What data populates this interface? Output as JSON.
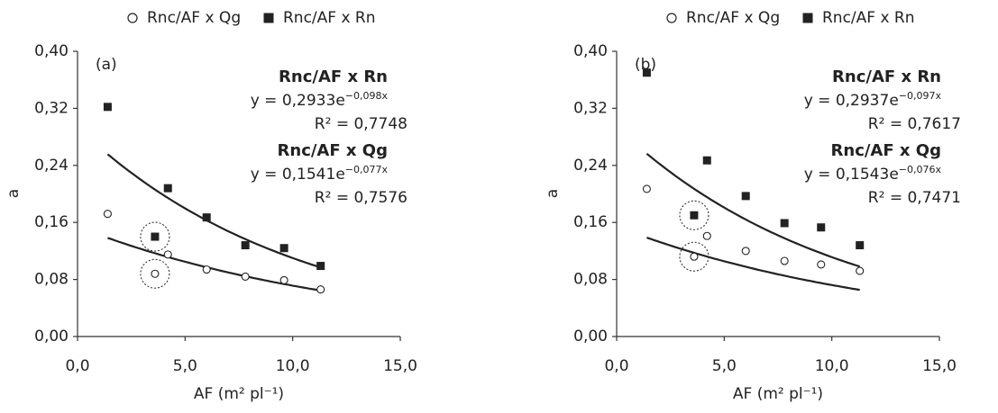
{
  "chart_data": [
    {
      "type": "scatter",
      "panel_label": "(a)",
      "x_label": "AF (m² pl⁻¹)",
      "y_label": "a",
      "xlim": [
        0,
        15
      ],
      "ylim": [
        0,
        0.4
      ],
      "xticks": [
        {
          "value": 0,
          "label": "0,0"
        },
        {
          "value": 5,
          "label": "5,0"
        },
        {
          "value": 10,
          "label": "10,0"
        },
        {
          "value": 15,
          "label": "15,0"
        }
      ],
      "yticks": [
        {
          "value": 0,
          "label": "0,00"
        },
        {
          "value": 0.08,
          "label": "0,08"
        },
        {
          "value": 0.16,
          "label": "0,16"
        },
        {
          "value": 0.24,
          "label": "0,24"
        },
        {
          "value": 0.32,
          "label": "0,32"
        },
        {
          "value": 0.4,
          "label": "0,40"
        }
      ],
      "circled_index": 1,
      "series": [
        {
          "name": "Rnc/AF x Qg",
          "marker": "circle",
          "color": "#222222",
          "x": [
            1.4,
            3.6,
            4.2,
            6.0,
            7.8,
            9.6,
            11.3
          ],
          "values": [
            0.172,
            0.088,
            0.115,
            0.094,
            0.084,
            0.079,
            0.066
          ],
          "trend": {
            "a": 0.1541,
            "b": -0.077
          },
          "fit_title": "Rnc/AF x Qg",
          "equation": "y = 0,1541e",
          "exponent": "−0,077x",
          "r2": "R² = 0,7576"
        },
        {
          "name": "Rnc/AF x Rn",
          "marker": "square",
          "color": "#222222",
          "x": [
            1.4,
            3.6,
            4.2,
            6.0,
            7.8,
            9.6,
            11.3
          ],
          "values": [
            0.322,
            0.14,
            0.208,
            0.167,
            0.128,
            0.124,
            0.099
          ],
          "trend": {
            "a": 0.2933,
            "b": -0.098
          },
          "fit_title": "Rnc/AF x Rn",
          "equation": "y = 0,2933e",
          "exponent": "−0,098x",
          "r2": "R² = 0,7748"
        }
      ]
    },
    {
      "type": "scatter",
      "panel_label": "(b)",
      "x_label": "AF (m² pl⁻¹)",
      "y_label": "a",
      "xlim": [
        0,
        15
      ],
      "ylim": [
        0,
        0.4
      ],
      "xticks": [
        {
          "value": 0,
          "label": "0,0"
        },
        {
          "value": 5,
          "label": "5,0"
        },
        {
          "value": 10,
          "label": "10,0"
        },
        {
          "value": 15,
          "label": "15,0"
        }
      ],
      "yticks": [
        {
          "value": 0,
          "label": "0,00"
        },
        {
          "value": 0.08,
          "label": "0,08"
        },
        {
          "value": 0.16,
          "label": "0,16"
        },
        {
          "value": 0.24,
          "label": "0,24"
        },
        {
          "value": 0.32,
          "label": "0,32"
        },
        {
          "value": 0.4,
          "label": "0,40"
        }
      ],
      "circled_index": 1,
      "series": [
        {
          "name": "Rnc/AF x Qg",
          "marker": "circle",
          "color": "#222222",
          "x": [
            1.4,
            3.6,
            4.2,
            6.0,
            7.8,
            9.5,
            11.3
          ],
          "values": [
            0.207,
            0.112,
            0.141,
            0.12,
            0.106,
            0.101,
            0.092
          ],
          "trend": {
            "a": 0.1543,
            "b": -0.076
          },
          "fit_title": "Rnc/AF x Qg",
          "equation": "y = 0,1543e",
          "exponent": "−0,076x",
          "r2": "R² = 0,7471"
        },
        {
          "name": "Rnc/AF x Rn",
          "marker": "square",
          "color": "#222222",
          "x": [
            1.4,
            3.6,
            4.2,
            6.0,
            7.8,
            9.5,
            11.3
          ],
          "values": [
            0.37,
            0.17,
            0.247,
            0.197,
            0.159,
            0.153,
            0.128
          ],
          "trend": {
            "a": 0.2937,
            "b": -0.097
          },
          "fit_title": "Rnc/AF x Rn",
          "equation": "y = 0,2937e",
          "exponent": "−0,097x",
          "r2": "R² = 0,7617"
        }
      ]
    }
  ]
}
